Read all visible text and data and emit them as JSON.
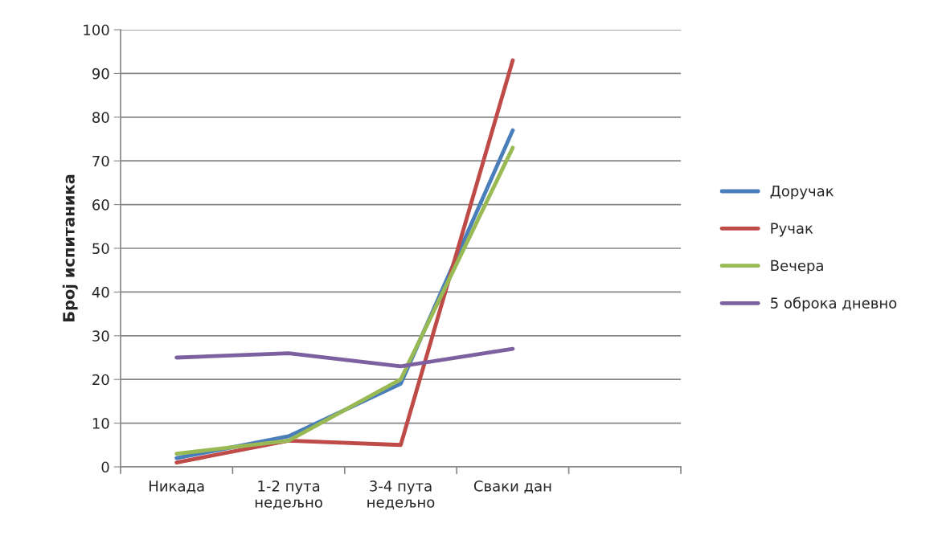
{
  "chart_data": {
    "type": "line",
    "ylabel": "Број испитаника",
    "categories": [
      "Никада",
      "1-2 пута\nнедељно",
      "3-4 пута\nнедељно",
      "Сваки дан",
      null
    ],
    "series": [
      {
        "name": "Доручак",
        "color": "#4a7ebb",
        "values": [
          2,
          7,
          19,
          77,
          null
        ]
      },
      {
        "name": "Ручак",
        "color": "#be4b48",
        "values": [
          1,
          6,
          5,
          93,
          null
        ]
      },
      {
        "name": "Вечера",
        "color": "#98b954",
        "values": [
          3,
          6,
          20,
          73,
          null
        ]
      },
      {
        "name": "5 оброка дневно",
        "color": "#7d60a0",
        "values": [
          25,
          26,
          23,
          27,
          null
        ]
      }
    ],
    "ylim": [
      0,
      100
    ],
    "yticks": [
      0,
      10,
      20,
      30,
      40,
      50,
      60,
      70,
      80,
      90,
      100
    ],
    "grid": "y",
    "legend": "right",
    "marker": "none",
    "line_style": "solid"
  }
}
